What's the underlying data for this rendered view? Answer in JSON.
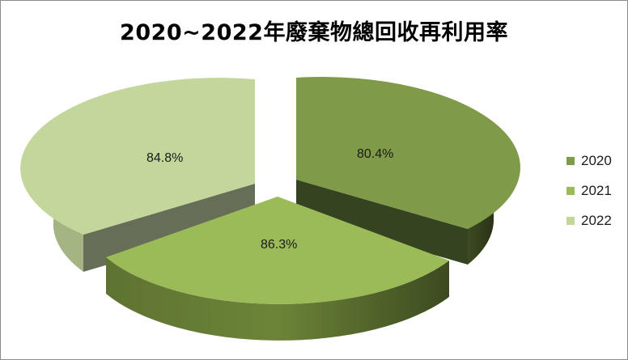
{
  "chart_data": {
    "type": "pie",
    "title": "2020~2022年廢棄物總回收再利用率",
    "categories": [
      "2020",
      "2021",
      "2022"
    ],
    "values": [
      80.4,
      86.3,
      84.8
    ],
    "labels": [
      "80.4%",
      "86.3%",
      "84.8%"
    ],
    "colors": {
      "2020": "#7f9a48",
      "2021": "#9bbb59",
      "2022": "#c3d69b"
    },
    "style": "3d exploded pie",
    "legend": "right"
  }
}
